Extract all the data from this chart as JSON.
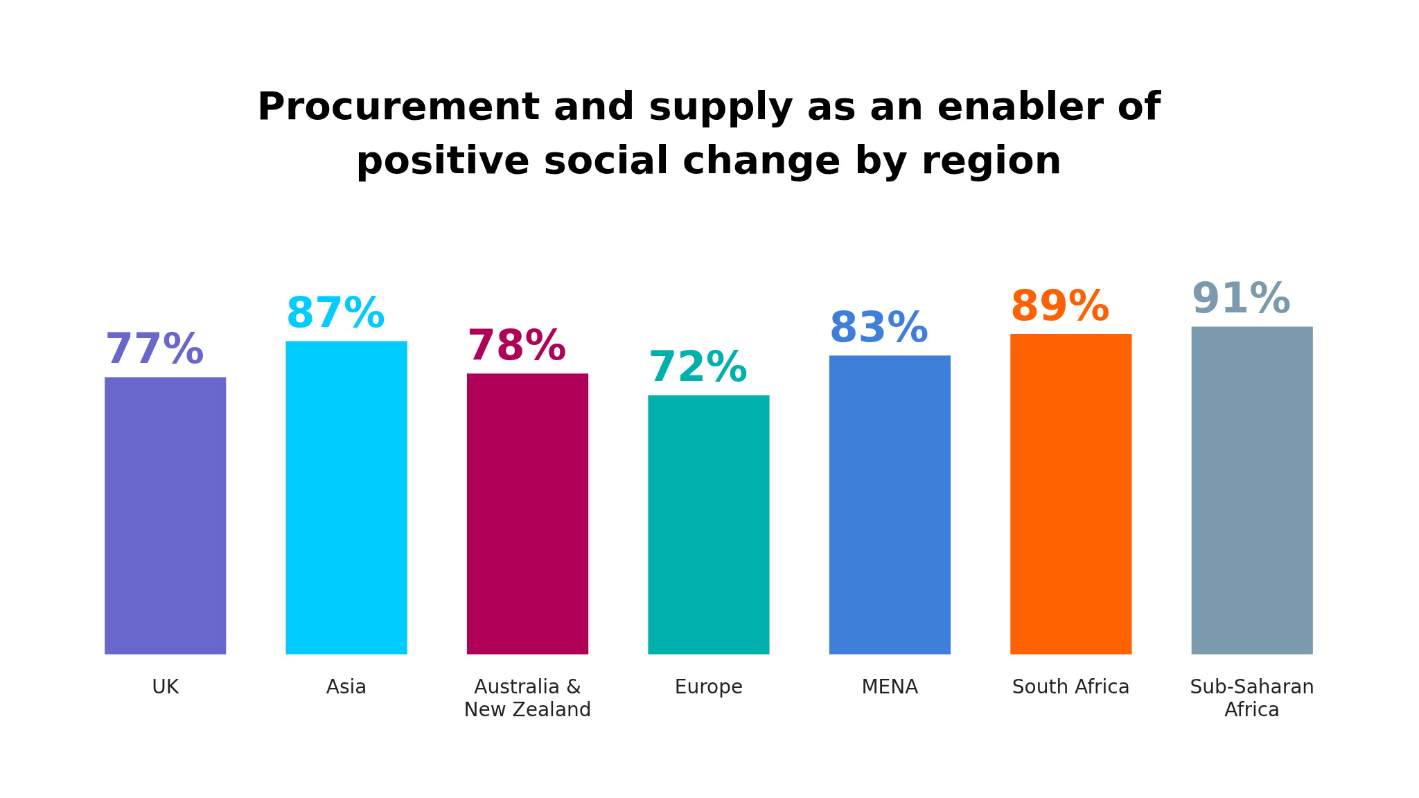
{
  "chart_data": {
    "type": "bar",
    "title": "Procurement and supply as an enabler of positive social change by region",
    "categories": [
      "UK",
      "Asia",
      "Australia & New Zealand",
      "Europe",
      "MENA",
      "South Africa",
      "Sub-Saharan Africa"
    ],
    "values": [
      77,
      87,
      78,
      72,
      83,
      89,
      91
    ],
    "value_labels": [
      "77%",
      "87%",
      "78%",
      "72%",
      "83%",
      "89%",
      "91%"
    ],
    "colors": [
      "#6a67cc",
      "#00ccff",
      "#b00058",
      "#00b0ab",
      "#3d7fdb",
      "#ff6000",
      "#7b9aae"
    ],
    "tick_labels": "x",
    "grid": false,
    "legend": false
  }
}
